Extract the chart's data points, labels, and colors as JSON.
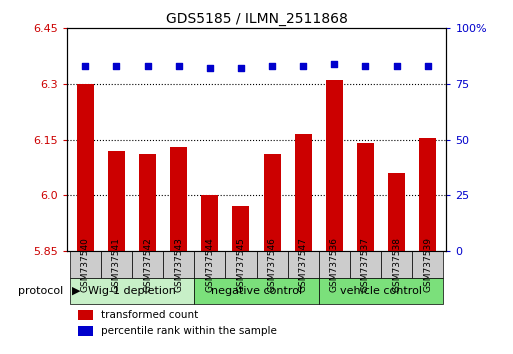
{
  "title": "GDS5185 / ILMN_2511868",
  "samples": [
    "GSM737540",
    "GSM737541",
    "GSM737542",
    "GSM737543",
    "GSM737544",
    "GSM737545",
    "GSM737546",
    "GSM737547",
    "GSM737536",
    "GSM737537",
    "GSM737538",
    "GSM737539"
  ],
  "transformed_counts": [
    6.3,
    6.12,
    6.11,
    6.13,
    6.0,
    5.97,
    6.11,
    6.165,
    6.31,
    6.14,
    6.06,
    6.155
  ],
  "percentile_ranks": [
    83,
    83,
    83,
    83,
    82,
    82,
    83,
    83,
    84,
    83,
    83,
    83
  ],
  "groups": [
    {
      "label": "Wig-1 depletion",
      "start": 0,
      "end": 4,
      "color": "#c8f0c8"
    },
    {
      "label": "negative control",
      "start": 4,
      "end": 8,
      "color": "#7be07b"
    },
    {
      "label": "vehicle control",
      "start": 8,
      "end": 12,
      "color": "#7be07b"
    }
  ],
  "group_dividers": [
    4,
    8
  ],
  "ylim_left": [
    5.85,
    6.45
  ],
  "ylim_right": [
    0,
    100
  ],
  "yticks_left": [
    5.85,
    6.0,
    6.15,
    6.3,
    6.45
  ],
  "yticks_right": [
    0,
    25,
    50,
    75,
    100
  ],
  "bar_color": "#CC0000",
  "dot_color": "#0000CC",
  "bar_width": 0.55,
  "background_color": "#ffffff",
  "plot_bg_color": "#ffffff",
  "tick_label_color_left": "#CC0000",
  "tick_label_color_right": "#0000CC",
  "legend_red_label": "transformed count",
  "legend_blue_label": "percentile rank within the sample",
  "protocol_label": "protocol",
  "grid_lines": [
    6.0,
    6.15,
    6.3
  ],
  "xtick_label_bg": "#cccccc",
  "xlim": [
    -0.6,
    11.6
  ]
}
